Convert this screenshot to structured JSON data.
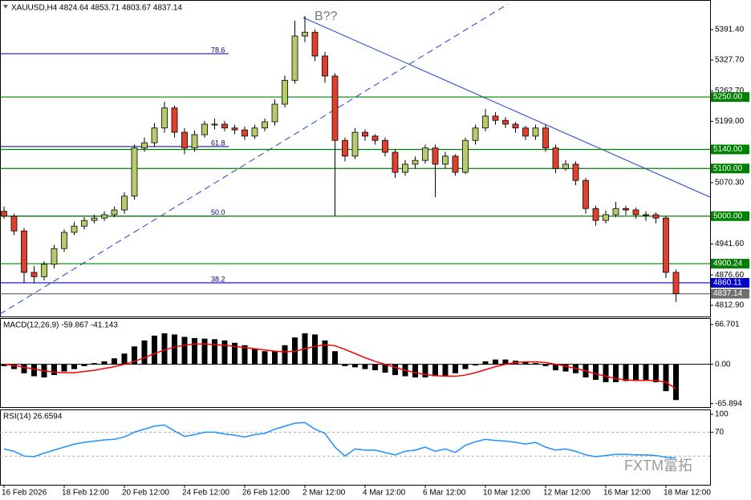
{
  "chart_data": [
    {
      "type": "candlestick",
      "title": "XAUUSD,H4  4824.64 4853.71 4803.67 4837.14",
      "annotation": "B??",
      "watermark": "FXTM富拓",
      "categories": [
        "16 Feb 2026",
        null,
        null,
        null,
        null,
        null,
        "18 Feb 12:00",
        null,
        null,
        null,
        null,
        null,
        "20 Feb 12:00",
        null,
        null,
        null,
        null,
        null,
        "24 Feb 12:00",
        null,
        null,
        null,
        null,
        null,
        "26 Feb 12:00",
        null,
        null,
        null,
        null,
        null,
        "2 Mar 12:00",
        null,
        null,
        null,
        null,
        null,
        "4 Mar 12:00",
        null,
        null,
        null,
        null,
        null,
        "6 Mar 12:00",
        null,
        null,
        null,
        null,
        null,
        "10 Mar 12:00",
        null,
        null,
        null,
        null,
        null,
        "12 Mar 12:00",
        null,
        null,
        null,
        null,
        null,
        "16 Mar 12:00",
        null,
        null,
        null,
        null,
        null,
        "18 Mar 12:00",
        null
      ],
      "open": [
        5010,
        5000,
        4969,
        4882,
        4873,
        4899,
        4932,
        4966,
        4979,
        4991,
        4996,
        5003,
        5013,
        5042,
        5143,
        5154,
        5185,
        5227,
        5176,
        5143,
        5171,
        5193,
        5193,
        5185,
        5181,
        5168,
        5185,
        5198,
        5235,
        5285,
        5378,
        5386,
        5336,
        5294,
        5159,
        5126,
        5176,
        5168,
        5159,
        5134,
        5092,
        5109,
        5117,
        5143,
        5109,
        5126,
        5092,
        5159,
        5185,
        5210,
        5201,
        5193,
        5185,
        5168,
        5185,
        5143,
        5100,
        5109,
        5075,
        5016,
        4991,
        5003,
        5016,
        5013,
        5003,
        5003,
        4996,
        4882
      ],
      "high": [
        5020,
        5005,
        4975,
        4895,
        4905,
        4940,
        4972,
        4988,
        4998,
        5003,
        5010,
        5020,
        5050,
        5150,
        5165,
        5195,
        5240,
        5232,
        5185,
        5180,
        5200,
        5205,
        5200,
        5192,
        5188,
        5192,
        5205,
        5245,
        5295,
        5410,
        5420,
        5392,
        5345,
        5300,
        5165,
        5185,
        5182,
        5172,
        5165,
        5140,
        5118,
        5125,
        5150,
        5150,
        5135,
        5130,
        5165,
        5192,
        5225,
        5218,
        5208,
        5198,
        5190,
        5192,
        5192,
        5150,
        5118,
        5115,
        5080,
        5022,
        5012,
        5030,
        5022,
        5018,
        5010,
        5008,
        5000,
        4888
      ],
      "low": [
        4995,
        4960,
        4860,
        4860,
        4865,
        4890,
        4925,
        4960,
        4972,
        4985,
        4990,
        4998,
        5005,
        5035,
        5135,
        5145,
        5175,
        5165,
        5130,
        5135,
        5165,
        5182,
        5178,
        5172,
        5160,
        5162,
        5178,
        5190,
        5228,
        5278,
        5365,
        5325,
        5280,
        5000,
        5115,
        5120,
        5158,
        5150,
        5125,
        5080,
        5085,
        5100,
        5110,
        5040,
        5100,
        5085,
        5088,
        5150,
        5178,
        5192,
        5185,
        5175,
        5160,
        5160,
        5135,
        5090,
        5095,
        5065,
        5005,
        4980,
        4985,
        4998,
        5002,
        4995,
        4990,
        4985,
        4870,
        4820
      ],
      "close": [
        5000,
        4969,
        4882,
        4873,
        4899,
        4932,
        4966,
        4979,
        4991,
        4996,
        5003,
        5013,
        5042,
        5143,
        5154,
        5185,
        5227,
        5176,
        5143,
        5171,
        5193,
        5193,
        5185,
        5181,
        5168,
        5185,
        5198,
        5235,
        5285,
        5378,
        5386,
        5336,
        5294,
        5159,
        5126,
        5176,
        5168,
        5159,
        5134,
        5092,
        5109,
        5117,
        5143,
        5109,
        5126,
        5092,
        5159,
        5185,
        5210,
        5201,
        5193,
        5185,
        5168,
        5185,
        5143,
        5100,
        5109,
        5075,
        5016,
        4991,
        5003,
        5016,
        5013,
        5003,
        5003,
        4996,
        4882,
        4837.14
      ],
      "up_color": "#b6cc6a",
      "down_color": "#e0402c",
      "ylim": [
        4789.4,
        5453.6
      ],
      "yticks": [
        {
          "value": 5391.4,
          "label": "5391.40"
        },
        {
          "value": 5327.7,
          "label": "5327.70"
        },
        {
          "value": 5262.7,
          "label": "5262.70"
        },
        {
          "value": 5199,
          "label": "5199.00"
        },
        {
          "value": 5070.3,
          "label": "5070.30"
        },
        {
          "value": 4941.6,
          "label": "4941.60"
        },
        {
          "value": 4876.6,
          "label": "4876.60"
        },
        {
          "value": 4812.9,
          "label": "4812.90"
        }
      ],
      "levels": [
        {
          "value": 5250,
          "label": "5250.00",
          "color": "#008000"
        },
        {
          "value": 5140,
          "label": "5140.00",
          "color": "#008000"
        },
        {
          "value": 5100,
          "label": "5100.00",
          "color": "#008000"
        },
        {
          "value": 5000,
          "label": "5000.00",
          "color": "#008000"
        },
        {
          "value": 4900.24,
          "label": "4900.24",
          "color": "#008000"
        },
        {
          "value": 4860.11,
          "label": "4860.11",
          "color": "#0000cd"
        },
        {
          "value": 4837.14,
          "label": "4837.14",
          "color": "#707070"
        }
      ],
      "fib_levels": [
        {
          "value": 5341,
          "label": "78.6"
        },
        {
          "value": 5146,
          "label": "61.8"
        },
        {
          "value": 5000,
          "label": "50.0"
        },
        {
          "value": 4860,
          "label": "38.2"
        }
      ]
    },
    {
      "type": "macd",
      "title": "MACD(12,26,9) -59.867 -41.143",
      "series": [
        {
          "color": "#000000",
          "values": [
            -3,
            -8,
            -15,
            -20,
            -22,
            -18,
            -12,
            -8,
            -3,
            2,
            5,
            10,
            18,
            30,
            40,
            48,
            52,
            50,
            46,
            44,
            43,
            42,
            40,
            36,
            32,
            26,
            22,
            22,
            32,
            45,
            52,
            50,
            40,
            22,
            -3,
            -5,
            -8,
            -10,
            -14,
            -18,
            -20,
            -22,
            -22,
            -20,
            -20,
            -15,
            -8,
            -2,
            5,
            8,
            8,
            6,
            4,
            2,
            -3,
            -10,
            -12,
            -15,
            -22,
            -26,
            -30,
            -30,
            -28,
            -28,
            -27,
            -30,
            -45,
            -59.867
          ]
        },
        {
          "color": "#ff0000",
          "values": [
            0,
            -2,
            -5,
            -8,
            -11,
            -13,
            -14,
            -14,
            -12,
            -10,
            -7,
            -4,
            0,
            5,
            11,
            18,
            24,
            29,
            32,
            34,
            34,
            33,
            32,
            30,
            28,
            26,
            24,
            22,
            21,
            22,
            26,
            30,
            33,
            31,
            25,
            18,
            11,
            5,
            0,
            -5,
            -10,
            -14,
            -17,
            -19,
            -20,
            -20,
            -18,
            -14,
            -9,
            -4,
            0,
            3,
            4,
            4,
            3,
            0,
            -3,
            -7,
            -11,
            -16,
            -20,
            -24,
            -26,
            -27,
            -27,
            -27,
            -30,
            -41.143
          ]
        }
      ],
      "ylim": [
        -71.6,
        77.4
      ],
      "yticks": [
        66.701,
        {
          "value": 0,
          "label": "0.00"
        },
        -65.894
      ]
    },
    {
      "type": "line",
      "title": "RSI(14) 26.6594",
      "color": "#1e90ff",
      "values": [
        42,
        38,
        30,
        29,
        35,
        40,
        45,
        50,
        53,
        55,
        57,
        58,
        62,
        70,
        75,
        80,
        82,
        72,
        63,
        66,
        70,
        70,
        67,
        65,
        62,
        66,
        68,
        75,
        80,
        85,
        86,
        75,
        68,
        45,
        30,
        42,
        40,
        40,
        36,
        32,
        38,
        40,
        45,
        38,
        42,
        36,
        48,
        54,
        58,
        56,
        55,
        53,
        50,
        53,
        45,
        40,
        42,
        38,
        32,
        29,
        31,
        33,
        33,
        32,
        32,
        31,
        28,
        26.6594
      ],
      "ylim": [
        -18,
        108
      ],
      "yticks": [
        100,
        70
      ],
      "levels": [
        70,
        30
      ]
    }
  ]
}
